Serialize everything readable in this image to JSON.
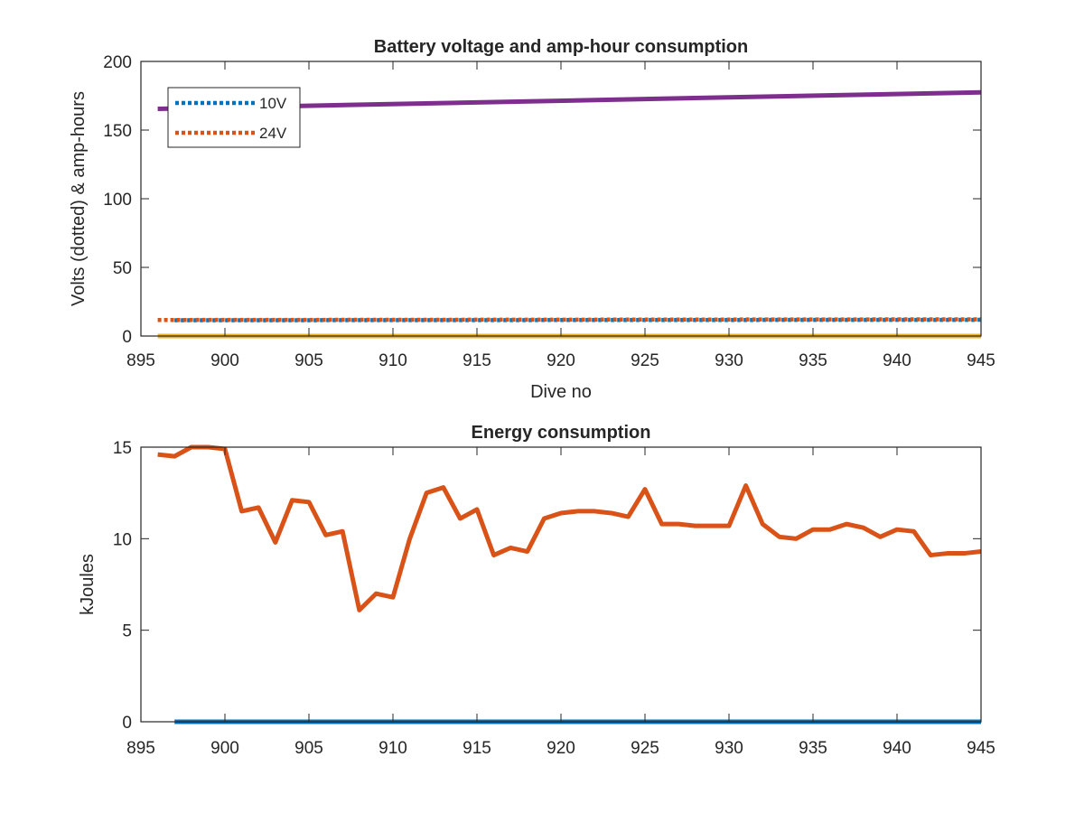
{
  "chart_data": [
    {
      "type": "line",
      "title": "Battery voltage and amp-hour consumption",
      "xlabel": "Dive no",
      "ylabel": "Volts (dotted) & amp-hours",
      "xlim": [
        895,
        945
      ],
      "ylim": [
        0,
        200
      ],
      "xticks": [
        895,
        900,
        905,
        910,
        915,
        920,
        925,
        930,
        935,
        940,
        945
      ],
      "yticks": [
        0,
        50,
        100,
        150,
        200
      ],
      "grid": false,
      "legend": {
        "placement": "top-left",
        "entries": [
          "10V",
          "24V"
        ]
      },
      "series": [
        {
          "name": "10V",
          "style": "dotted",
          "color": "#0072BD",
          "x": [
            897,
            945
          ],
          "y": [
            11.5,
            11.8
          ]
        },
        {
          "name": "24V",
          "style": "dotted",
          "color": "#D95319",
          "x": [
            896,
            945
          ],
          "y": [
            11.7,
            12.2
          ]
        },
        {
          "style": "solid",
          "color": "#7E2F8E",
          "x": [
            896,
            945
          ],
          "y": [
            165.5,
            177.5
          ]
        },
        {
          "style": "solid",
          "color": "#EDB120",
          "x": [
            896,
            945
          ],
          "y": [
            0,
            0
          ]
        }
      ]
    },
    {
      "type": "line",
      "title": "Energy consumption",
      "xlabel": "",
      "ylabel": "kJoules",
      "xlim": [
        895,
        945
      ],
      "ylim": [
        0,
        15
      ],
      "xticks": [
        895,
        900,
        905,
        910,
        915,
        920,
        925,
        930,
        935,
        940,
        945
      ],
      "yticks": [
        0,
        5,
        10,
        15
      ],
      "grid": false,
      "series": [
        {
          "style": "solid",
          "color": "#D95319",
          "x": [
            896,
            897,
            898,
            899,
            900,
            901,
            902,
            903,
            904,
            905,
            906,
            907,
            908,
            909,
            910,
            911,
            912,
            913,
            914,
            915,
            916,
            917,
            918,
            919,
            920,
            921,
            922,
            923,
            924,
            925,
            926,
            927,
            928,
            929,
            930,
            931,
            932,
            933,
            934,
            935,
            936,
            937,
            938,
            939,
            940,
            941,
            942,
            943,
            944,
            945
          ],
          "y": [
            14.6,
            14.5,
            15.0,
            15.0,
            14.9,
            11.5,
            11.7,
            9.8,
            12.1,
            12.0,
            10.2,
            10.4,
            6.1,
            7.0,
            6.8,
            10.0,
            12.5,
            12.8,
            11.1,
            11.6,
            9.1,
            9.5,
            9.3,
            11.1,
            11.4,
            11.5,
            11.5,
            11.4,
            11.2,
            12.7,
            10.8,
            10.8,
            10.7,
            10.7,
            10.7,
            12.9,
            10.8,
            10.1,
            10.0,
            10.5,
            10.5,
            10.8,
            10.6,
            10.1,
            10.5,
            10.4,
            9.1,
            9.2,
            9.2,
            9.3
          ]
        },
        {
          "style": "solid",
          "color": "#0072BD",
          "x": [
            897,
            945
          ],
          "y": [
            0,
            0
          ]
        }
      ]
    }
  ]
}
